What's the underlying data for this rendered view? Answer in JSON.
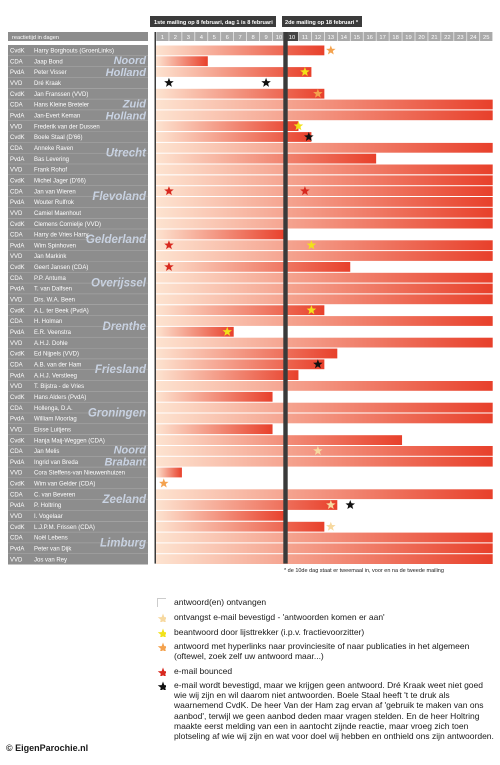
{
  "copyright": "© EigenParochie.nl",
  "footnote": "* de 10de dag staat er tweemaal in, voor en na de tweede mailing",
  "legend": [
    {
      "key": "answered",
      "text": "antwoord(en) ontvangen",
      "color": "#ffffff",
      "icon": "white-box"
    },
    {
      "key": "ack",
      "text": "ontvangst e-mail bevestigd - 'antwoorden komen er aan'",
      "color": "#f7d9a0",
      "icon": "pale-star"
    },
    {
      "key": "lead",
      "text": "beantwoord door lijsttrekker (i.p.v. fractievoorzitter)",
      "color": "#f2e21a",
      "icon": "yellow-star"
    },
    {
      "key": "links",
      "text": "antwoord met hyperlinks naar provinciesite of naar publicaties in het algemeen (oftewel, zoek zelf uw antwoord maar...)",
      "color": "#f4a24e",
      "icon": "orange-star"
    },
    {
      "key": "bounced",
      "text": "e-mail bounced",
      "color": "#d8291f",
      "icon": "red-star"
    },
    {
      "key": "noanswer",
      "text": "e-mail wordt bevestigd, maar we krijgen geen antwoord. Dré Kraak weet niet goed wie wij zijn en wil daarom niet antwoorden. Boele Staal heeft 't te druk als waarnemend CvdK. De heer Van der Ham zag ervan af 'gebruik te maken van ons aanbod', terwijl we geen aanbod deden maar vragen stelden. En de heer Holtring maakte eerst melding van een in aantocht zijnde reactie, maar vroeg zich toen plotseling af wie wij zijn en wat voor doel wij hebben en onthield ons zijn antwoorden.",
      "color": "#111111",
      "icon": "black-star"
    }
  ],
  "chart_data": {
    "type": "gantt",
    "header_left": "reactietijd in dagen",
    "header_mailing1": "1ste mailing op 8 februari, dag 1 is 8 februari",
    "header_mailing2": "2de mailing op 18 februari *",
    "day_labels": [
      "1",
      "2",
      "3",
      "4",
      "5",
      "6",
      "7",
      "8",
      "9",
      "10",
      "10",
      "11",
      "12",
      "13",
      "14",
      "15",
      "16",
      "17",
      "18",
      "19",
      "20",
      "21",
      "22",
      "23",
      "24",
      "25"
    ],
    "bar_gradient": [
      "#fde3d0",
      "#e8402b"
    ],
    "provinces": [
      {
        "name": "Noord Holland",
        "rows": [
          {
            "role": "CvdK",
            "person": "Harry Borghouts (GroenLinks)",
            "days": 13,
            "marker": "orange",
            "marker_day": 13.5
          },
          {
            "role": "CDA",
            "person": "Jaap Bond",
            "days": 4
          },
          {
            "role": "PvdA",
            "person": "Peter Visser",
            "days": 12,
            "marker": "yellow",
            "marker_day": 11.5
          },
          {
            "role": "VVD",
            "person": "Dré Kraak",
            "days": 0,
            "marker": "black",
            "marker_day": 1,
            "marker2": "black",
            "marker2_day": 8.5
          }
        ]
      },
      {
        "name": "Zuid Holland",
        "rows": [
          {
            "role": "CvdK",
            "person": "Jan Franssen (VVD)",
            "days": 13,
            "marker": "orange",
            "marker_day": 12.5
          },
          {
            "role": "CDA",
            "person": "Hans Kleine Breteler",
            "days": 26
          },
          {
            "role": "PvdA",
            "person": "Jan-Evert Keman",
            "days": 26
          },
          {
            "role": "VVD",
            "person": "Frederik van der Dussen",
            "days": 11,
            "marker": "yellow",
            "marker_day": 11
          }
        ]
      },
      {
        "name": "Utrecht",
        "rows": [
          {
            "role": "CvdK",
            "person": "Boele Staal (D'66)",
            "days": 12,
            "marker": "black",
            "marker_day": 11.8
          },
          {
            "role": "CDA",
            "person": "Anneke Raven",
            "days": 26
          },
          {
            "role": "PvdA",
            "person": "Bas Levering",
            "days": 17
          },
          {
            "role": "VVD",
            "person": "Frank Rohof",
            "days": 26
          }
        ]
      },
      {
        "name": "Flevoland",
        "rows": [
          {
            "role": "CvdK",
            "person": "Michel Jager (D'66)",
            "days": 26
          },
          {
            "role": "CDA",
            "person": "Jan van Wieren",
            "days": 26,
            "marker": "red",
            "marker_day": 1,
            "marker2": "red",
            "marker2_day": 11.5
          },
          {
            "role": "PvdA",
            "person": "Wouter Rulfrok",
            "days": 26
          },
          {
            "role": "VVD",
            "person": "Camiel Maenhout",
            "days": 26
          }
        ]
      },
      {
        "name": "Gelderland",
        "rows": [
          {
            "role": "CvdK",
            "person": "Clemens Cornielje (VVD)",
            "days": 26
          },
          {
            "role": "CDA",
            "person": "Harry de Vries Harry",
            "days": 10
          },
          {
            "role": "PvdA",
            "person": "Wim Spinhoven",
            "days": 26,
            "marker": "red",
            "marker_day": 1,
            "marker2": "yellow",
            "marker2_day": 12
          },
          {
            "role": "VVD",
            "person": "Jan Markink",
            "days": 26
          }
        ]
      },
      {
        "name": "Overijssel",
        "rows": [
          {
            "role": "CvdK",
            "person": "Geert Jansen (CDA)",
            "days": 15,
            "marker": "red",
            "marker_day": 1
          },
          {
            "role": "CDA",
            "person": "P.P. Antuma",
            "days": 26
          },
          {
            "role": "PvdA",
            "person": "T. van Dalfsen",
            "days": 26
          },
          {
            "role": "VVD",
            "person": "Drs. W.A. Been",
            "days": 26
          }
        ]
      },
      {
        "name": "Drenthe",
        "rows": [
          {
            "role": "CvdK",
            "person": "A.L. ter Beek (PvdA)",
            "days": 13,
            "marker": "yellow",
            "marker_day": 12
          },
          {
            "role": "CDA",
            "person": "H. Holman",
            "days": 26
          },
          {
            "role": "PvdA",
            "person": "E.R. Veenstra",
            "days": 6,
            "marker": "yellow",
            "marker_day": 5.5
          },
          {
            "role": "VVD",
            "person": "A.H.J. Dohle",
            "days": 26
          }
        ]
      },
      {
        "name": "Friesland",
        "rows": [
          {
            "role": "CvdK",
            "person": "Ed Nijpels (VVD)",
            "days": 14
          },
          {
            "role": "CDA",
            "person": "A.B. van der Ham",
            "days": 13,
            "marker": "black",
            "marker_day": 12.5
          },
          {
            "role": "PvdA",
            "person": "A.H.J. Verstleeg",
            "days": 11
          },
          {
            "role": "VVD",
            "person": "T. Bijstra - de Vries",
            "days": 26
          }
        ]
      },
      {
        "name": "Groningen",
        "rows": [
          {
            "role": "CvdK",
            "person": "Hans Alders (PvdA)",
            "days": 9
          },
          {
            "role": "CDA",
            "person": "Hollenga, D.A.",
            "days": 26
          },
          {
            "role": "PvdA",
            "person": "William Moorlag",
            "days": 26
          },
          {
            "role": "VVD",
            "person": "Eisse Luitjens",
            "days": 9
          }
        ]
      },
      {
        "name": "Noord Brabant",
        "rows": [
          {
            "role": "CvdK",
            "person": "Hanja Maij-Weggen (CDA)",
            "days": 19
          },
          {
            "role": "CDA",
            "person": "Jan Melis",
            "days": 26,
            "marker": "pale",
            "marker_day": 12.5
          },
          {
            "role": "PvdA",
            "person": "Ingrid van Breda",
            "days": 26
          },
          {
            "role": "VVD",
            "person": "Cora Steffens-van Nieuwenhuizen",
            "days": 2
          }
        ]
      },
      {
        "name": "Zeeland",
        "rows": [
          {
            "role": "CvdK",
            "person": "Wim van Gelder (CDA)",
            "days": 0,
            "marker": "orange",
            "marker_day": 0.6
          },
          {
            "role": "CDA",
            "person": "C. van Beveren",
            "days": 26
          },
          {
            "role": "PvdA",
            "person": "P. Holtring",
            "days": 14,
            "marker": "pale",
            "marker_day": 13.5,
            "marker2": "black",
            "marker2_day": 15
          },
          {
            "role": "VVD",
            "person": "I. Vogelaar",
            "days": 10
          }
        ]
      },
      {
        "name": "Limburg",
        "rows": [
          {
            "role": "CvdK",
            "person": "L.J.P.M. Frissen (CDA)",
            "days": 13,
            "marker": "pale",
            "marker_day": 13.5
          },
          {
            "role": "CDA",
            "person": "Noël Lebens",
            "days": 26
          },
          {
            "role": "PvdA",
            "person": "Peter van Dijk",
            "days": 26
          },
          {
            "role": "VVD",
            "person": "Jos van Rey",
            "days": 26
          }
        ]
      }
    ]
  }
}
